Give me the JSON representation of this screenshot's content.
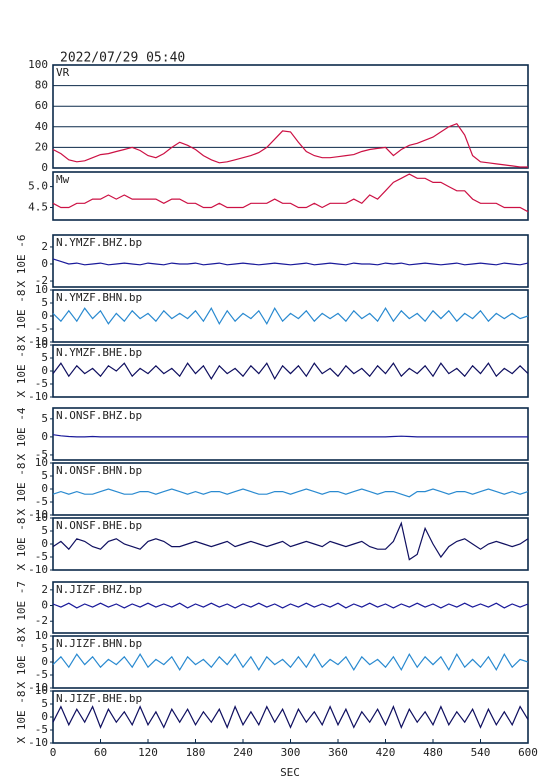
{
  "chart_data": {
    "type": "line",
    "title": "2022/07/29 05:40",
    "xlabel": "SEC",
    "x": [
      0,
      10,
      20,
      30,
      40,
      50,
      60,
      70,
      80,
      90,
      100,
      110,
      120,
      130,
      140,
      150,
      160,
      170,
      180,
      190,
      200,
      210,
      220,
      230,
      240,
      250,
      260,
      270,
      280,
      290,
      300,
      310,
      320,
      330,
      340,
      350,
      360,
      370,
      380,
      390,
      400,
      410,
      420,
      430,
      440,
      450,
      460,
      470,
      480,
      490,
      500,
      510,
      520,
      530,
      540,
      550,
      560,
      570,
      580,
      590,
      600
    ],
    "xlim": [
      0,
      600
    ],
    "xticks": [
      0,
      60,
      120,
      180,
      240,
      300,
      360,
      420,
      480,
      540,
      600
    ],
    "panels": [
      {
        "name": "VR",
        "color": "#cc1144",
        "grid": true,
        "ylim": [
          0,
          100
        ],
        "yticks": [
          0,
          20,
          40,
          60,
          80,
          100
        ],
        "values": [
          18,
          14,
          8,
          6,
          7,
          10,
          13,
          14,
          16,
          18,
          20,
          17,
          12,
          10,
          14,
          20,
          25,
          22,
          18,
          12,
          8,
          5,
          6,
          8,
          10,
          12,
          15,
          20,
          28,
          36,
          35,
          25,
          16,
          12,
          10,
          10,
          11,
          12,
          13,
          16,
          18,
          19,
          20,
          12,
          18,
          22,
          24,
          27,
          30,
          35,
          40,
          43,
          32,
          12,
          6,
          5,
          4,
          3,
          2,
          1,
          1
        ]
      },
      {
        "name": "Mw",
        "color": "#cc1144",
        "ylim": [
          4.2,
          5.35
        ],
        "yticks": [
          4.5,
          {
            "value": 5,
            "label": "5.0"
          }
        ],
        "values": [
          4.6,
          4.5,
          4.5,
          4.6,
          4.6,
          4.7,
          4.7,
          4.8,
          4.7,
          4.8,
          4.7,
          4.7,
          4.7,
          4.7,
          4.6,
          4.7,
          4.7,
          4.6,
          4.6,
          4.5,
          4.5,
          4.6,
          4.5,
          4.5,
          4.5,
          4.6,
          4.6,
          4.6,
          4.7,
          4.6,
          4.6,
          4.5,
          4.5,
          4.6,
          4.5,
          4.6,
          4.6,
          4.6,
          4.7,
          4.6,
          4.8,
          4.7,
          4.9,
          5.1,
          5.2,
          5.3,
          5.2,
          5.2,
          5.1,
          5.1,
          5.0,
          4.9,
          4.9,
          4.7,
          4.6,
          4.6,
          4.6,
          4.5,
          4.5,
          4.5,
          4.4
        ]
      },
      {
        "name": "N.YMZF.BHZ.bp",
        "unit": "X 10E -6",
        "color": "#1a1a9a",
        "ylim": [
          -2.7,
          3.4
        ],
        "yticks": [
          -2,
          0,
          2
        ],
        "values": [
          0.6,
          0.3,
          0,
          0.1,
          -0.1,
          0,
          0.1,
          -0.1,
          0,
          0.1,
          0,
          -0.1,
          0.1,
          0,
          -0.1,
          0.1,
          0,
          0,
          0.1,
          -0.1,
          0,
          0.1,
          -0.1,
          0,
          0.1,
          0,
          -0.1,
          0,
          0.1,
          0,
          -0.1,
          0,
          0.1,
          -0.1,
          0,
          0.1,
          0,
          -0.1,
          0.1,
          0,
          0,
          -0.1,
          0.1,
          0,
          0.1,
          -0.1,
          0,
          0.1,
          0,
          -0.1,
          0,
          0.1,
          -0.1,
          0,
          0.1,
          0,
          -0.1,
          0.1,
          0,
          -0.1,
          0.1
        ]
      },
      {
        "name": "N.YMZF.BHN.bp",
        "unit": "X 10E -8",
        "color": "#2a8ad0",
        "ylim": [
          -10,
          10
        ],
        "yticks": [
          -10,
          -5,
          0,
          5,
          10
        ],
        "values": [
          1,
          -2,
          2,
          -2,
          3,
          -1,
          2,
          -3,
          1,
          -2,
          2,
          -1,
          1,
          -2,
          2,
          -1,
          1,
          -1,
          2,
          -2,
          3,
          -3,
          2,
          -2,
          1,
          -1,
          2,
          -3,
          3,
          -2,
          1,
          -1,
          2,
          -2,
          1,
          -1,
          1,
          -2,
          2,
          -1,
          1,
          -2,
          3,
          -2,
          2,
          -1,
          1,
          -2,
          2,
          -1,
          2,
          -2,
          1,
          -1,
          2,
          -2,
          1,
          -1,
          1,
          -1,
          0
        ]
      },
      {
        "name": "N.YMZF.BHE.bp",
        "unit": "X 10E -8",
        "color": "#101060",
        "ylim": [
          -10,
          10
        ],
        "yticks": [
          -10,
          -5,
          0,
          5,
          10
        ],
        "values": [
          -1,
          3,
          -2,
          2,
          -1,
          1,
          -2,
          2,
          0,
          3,
          -2,
          1,
          -1,
          2,
          -1,
          1,
          -2,
          3,
          -1,
          2,
          -3,
          2,
          -1,
          1,
          -2,
          2,
          -1,
          3,
          -3,
          2,
          -1,
          2,
          -2,
          3,
          -1,
          1,
          -2,
          2,
          -1,
          1,
          -2,
          2,
          -1,
          3,
          -2,
          1,
          -1,
          2,
          -2,
          3,
          -1,
          1,
          -2,
          2,
          -1,
          3,
          -2,
          1,
          -1,
          2,
          -1
        ]
      },
      {
        "name": "N.ONSF.BHZ.bp",
        "unit": "X 10E -4",
        "color": "#1a1a9a",
        "ylim": [
          -6.4,
          8
        ],
        "yticks": [
          -5,
          0,
          5
        ],
        "values": [
          0.6,
          0.3,
          0.1,
          0,
          0,
          0.1,
          0,
          0,
          0,
          0,
          0,
          0,
          0,
          0,
          0,
          0,
          0,
          0,
          0,
          0,
          0,
          0,
          0,
          0,
          0,
          0,
          0,
          0,
          0,
          0,
          0,
          0,
          0,
          0,
          0,
          0,
          0,
          0,
          0,
          0,
          0,
          0,
          0,
          0.1,
          0.2,
          0.1,
          0,
          0,
          0,
          0,
          0,
          0,
          0,
          0,
          0,
          0,
          0,
          0,
          0,
          0,
          0
        ]
      },
      {
        "name": "N.ONSF.BHN.bp",
        "unit": "X 10E -8",
        "color": "#2a8ad0",
        "ylim": [
          -10,
          10
        ],
        "yticks": [
          -10,
          -5,
          0,
          5,
          10
        ],
        "values": [
          -2,
          -1,
          -2,
          -1,
          -2,
          -2,
          -1,
          0,
          -1,
          -2,
          -2,
          -1,
          -1,
          -2,
          -1,
          0,
          -1,
          -2,
          -1,
          -2,
          -1,
          -1,
          -2,
          -1,
          0,
          -1,
          -2,
          -2,
          -1,
          -1,
          -2,
          -1,
          0,
          -1,
          -2,
          -1,
          -1,
          -2,
          -1,
          0,
          -1,
          -2,
          -1,
          -1,
          -2,
          -3,
          -1,
          -1,
          0,
          -1,
          -2,
          -1,
          -1,
          -2,
          -1,
          0,
          -1,
          -2,
          -1,
          -2,
          -1
        ]
      },
      {
        "name": "N.ONSF.BHE.bp",
        "unit": "X 10E -8",
        "color": "#101060",
        "ylim": [
          -10,
          10
        ],
        "yticks": [
          -10,
          -5,
          0,
          5,
          10
        ],
        "values": [
          -1,
          1,
          -2,
          2,
          1,
          -1,
          -2,
          1,
          2,
          0,
          -1,
          -2,
          1,
          2,
          1,
          -1,
          -1,
          0,
          1,
          0,
          -1,
          0,
          1,
          -1,
          0,
          1,
          0,
          -1,
          0,
          1,
          -1,
          0,
          1,
          0,
          -1,
          1,
          0,
          -1,
          0,
          1,
          -1,
          -2,
          -2,
          1,
          8,
          -6,
          -4,
          6,
          0,
          -5,
          -1,
          1,
          2,
          0,
          -2,
          0,
          1,
          0,
          -1,
          0,
          2
        ]
      },
      {
        "name": "N.JIZF.BHZ.bp",
        "unit": "X 10E -7",
        "color": "#1a1a9a",
        "ylim": [
          -3.5,
          3
        ],
        "yticks": [
          -2,
          0,
          2
        ],
        "values": [
          0.2,
          -0.2,
          0.3,
          -0.3,
          0.2,
          -0.2,
          0.3,
          -0.2,
          0.2,
          -0.3,
          0.2,
          -0.2,
          0.3,
          -0.2,
          0.2,
          -0.2,
          0.3,
          -0.3,
          0.2,
          -0.2,
          0.3,
          -0.2,
          0.2,
          -0.3,
          0.2,
          -0.2,
          0.3,
          -0.2,
          0.2,
          -0.3,
          0.2,
          -0.2,
          0.3,
          -0.2,
          0.2,
          -0.2,
          0.3,
          -0.3,
          0.2,
          -0.2,
          0.3,
          -0.2,
          0.2,
          -0.3,
          0.2,
          -0.2,
          0.3,
          -0.2,
          0.2,
          -0.3,
          0.2,
          -0.2,
          0.3,
          -0.2,
          0.2,
          -0.2,
          0.3,
          -0.3,
          0.2,
          -0.2,
          0.2
        ]
      },
      {
        "name": "N.JIZF.BHN.bp",
        "unit": "X 10E -8",
        "color": "#2a8ad0",
        "ylim": [
          -10,
          10
        ],
        "yticks": [
          -10,
          -5,
          0,
          5,
          10
        ],
        "values": [
          -1,
          2,
          -2,
          3,
          -1,
          2,
          -2,
          1,
          -1,
          2,
          -2,
          3,
          -2,
          1,
          -1,
          2,
          -3,
          2,
          -1,
          1,
          -2,
          2,
          -1,
          3,
          -2,
          2,
          -3,
          2,
          -1,
          1,
          -2,
          2,
          -2,
          3,
          -2,
          1,
          -1,
          2,
          -3,
          2,
          -1,
          1,
          -2,
          2,
          -3,
          3,
          -2,
          2,
          -1,
          2,
          -3,
          3,
          -2,
          1,
          -2,
          2,
          -3,
          3,
          -2,
          1,
          0
        ]
      },
      {
        "name": "N.JIZF.BHE.bp",
        "unit": "X 10E -8",
        "color": "#101060",
        "ylim": [
          -10,
          10
        ],
        "yticks": [
          -10,
          -5,
          0,
          5,
          10
        ],
        "values": [
          -2,
          4,
          -3,
          3,
          -2,
          4,
          -4,
          3,
          -2,
          2,
          -3,
          4,
          -3,
          2,
          -4,
          3,
          -2,
          3,
          -3,
          2,
          -2,
          3,
          -4,
          4,
          -3,
          2,
          -3,
          4,
          -2,
          3,
          -4,
          3,
          -2,
          2,
          -3,
          4,
          -3,
          3,
          -4,
          2,
          -2,
          3,
          -3,
          4,
          -4,
          3,
          -2,
          2,
          -3,
          4,
          -3,
          2,
          -2,
          3,
          -4,
          3,
          -3,
          2,
          -3,
          4,
          -1
        ]
      }
    ]
  }
}
